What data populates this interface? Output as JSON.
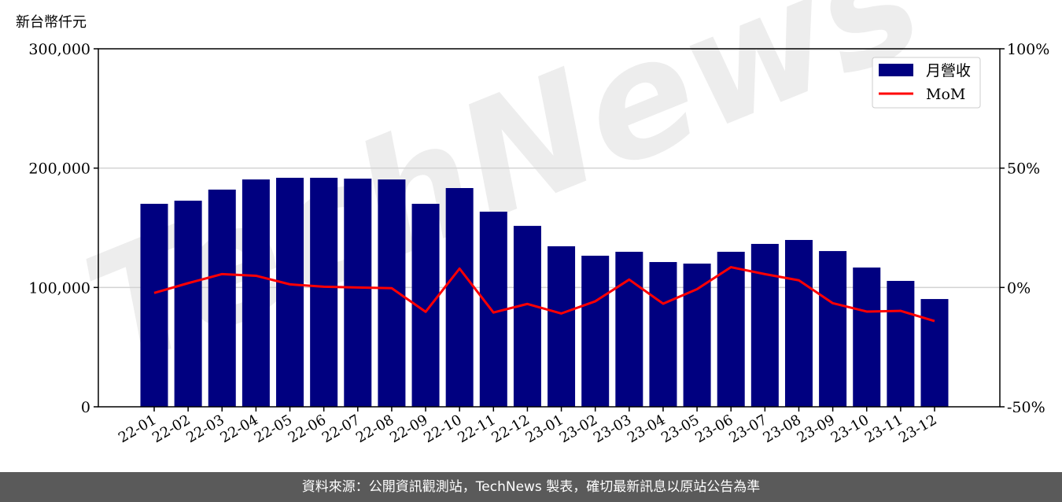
{
  "chart_data": {
    "type": "bar",
    "ylabel": "新台幣仟元",
    "categories": [
      "22-01",
      "22-02",
      "22-03",
      "22-04",
      "22-05",
      "22-06",
      "22-07",
      "22-08",
      "22-09",
      "22-10",
      "22-11",
      "22-12",
      "23-01",
      "23-02",
      "23-03",
      "23-04",
      "23-05",
      "23-06",
      "23-07",
      "23-08",
      "23-09",
      "23-10",
      "23-11",
      "23-12"
    ],
    "series": [
      {
        "name": "月營收",
        "type": "bar",
        "axis": "left",
        "color": "#000080",
        "values": [
          170100,
          172700,
          182000,
          190500,
          191900,
          191900,
          191200,
          190500,
          170100,
          183300,
          163500,
          151600,
          134500,
          126600,
          129900,
          121300,
          120000,
          129900,
          136500,
          139800,
          130500,
          116700,
          105500,
          90300
        ]
      },
      {
        "name": "MoM",
        "type": "line",
        "axis": "right",
        "color": "#ff0000",
        "values": [
          -2.3,
          1.8,
          5.6,
          4.9,
          1.3,
          0.3,
          0.0,
          -0.3,
          -10.2,
          7.9,
          -10.5,
          -6.9,
          -10.9,
          -5.8,
          3.3,
          -6.8,
          -0.7,
          8.5,
          5.6,
          3.0,
          -6.6,
          -10.1,
          -9.8,
          -14.1
        ]
      }
    ],
    "ylim": [
      0,
      300000
    ],
    "yticks": [
      "0",
      "100,000",
      "200,000",
      "300,000"
    ],
    "y2lim": [
      -50,
      100
    ],
    "y2ticks": [
      "-50%",
      "0%",
      "50%",
      "100%"
    ],
    "grid": true,
    "legend": "top-right"
  },
  "watermark": "TechNews",
  "footer": "資料來源：公開資訊觀測站，TechNews 製表，確切最新訊息以原站公告為準"
}
